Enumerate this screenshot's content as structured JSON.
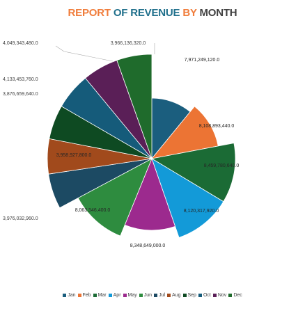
{
  "title": {
    "parts": [
      {
        "text": "REPORT ",
        "color": "#f07c3a"
      },
      {
        "text": "OF REVENUE ",
        "color": "#1f6f8b"
      },
      {
        "text": "BY ",
        "color": "#f07c3a"
      },
      {
        "text": "MONTH",
        "color": "#404040"
      }
    ]
  },
  "chart_data": {
    "type": "pie",
    "title": "REPORT OF REVENUE BY MONTH",
    "legend_position": "bottom",
    "categories": [
      "Jan",
      "Feb",
      "Mar",
      "Apr",
      "May",
      "Jun",
      "Jul",
      "Aug",
      "Sep",
      "Oct",
      "Nov",
      "Dec"
    ],
    "values": [
      7971249120,
      8108893440,
      8459780640,
      8120317920,
      8348649000,
      8063546400,
      3976032960,
      3958927800,
      3876659640,
      4133453760,
      4049343480,
      3966136320
    ],
    "labels": [
      "7,971,249,120.0",
      "8,108,893,440.0",
      "8,459,780,640.0",
      "8,120,317,920.0",
      "8,348,649,000.0",
      "8,063,546,400.0",
      "3,976,032,960.0",
      "3,958,927,800.0",
      "3,876,659,640.0",
      "4,133,453,760.0",
      "4,049,343,480.0",
      "3,966,136,320.0"
    ],
    "colors": [
      "#1b5e7e",
      "#ec7434",
      "#1b6b35",
      "#139ad8",
      "#9c2a8e",
      "#2e8c3f",
      "#1c4a63",
      "#a14a1c",
      "#0e4a22",
      "#155b7a",
      "#5a1f57",
      "#1f6b2c"
    ]
  }
}
